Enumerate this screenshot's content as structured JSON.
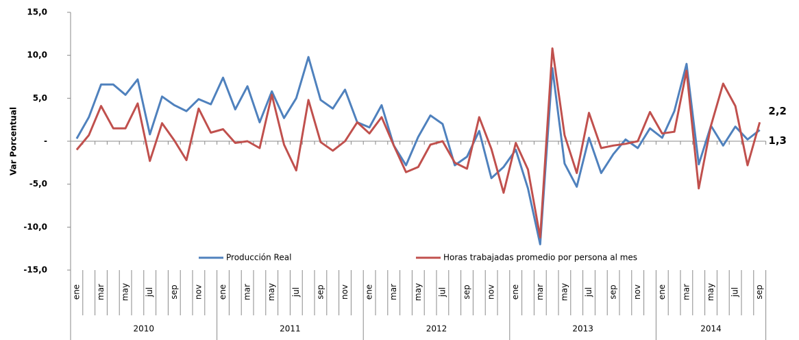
{
  "chart_data": {
    "type": "line",
    "y_label": "Var Porcentual",
    "categories": [
      "ene",
      null,
      "mar",
      null,
      "may",
      null,
      "jul",
      null,
      "sep",
      null,
      "nov",
      null,
      "ene",
      null,
      "mar",
      null,
      "may",
      null,
      "jul",
      null,
      "sep",
      null,
      "nov",
      null,
      "ene",
      null,
      "mar",
      null,
      "may",
      null,
      "jul",
      null,
      "sep",
      null,
      "nov",
      null,
      "ene",
      null,
      "mar",
      null,
      "may",
      null,
      "jul",
      null,
      "sep",
      null,
      "nov",
      null,
      "ene",
      null,
      "mar",
      null,
      "may",
      null,
      "jul",
      null,
      "sep"
    ],
    "years": [
      "2010",
      "2011",
      "2012",
      "2013",
      "2014"
    ],
    "series": [
      {
        "name": "Producción Real",
        "color": "#4f81bd",
        "values": [
          0.3,
          2.8,
          6.6,
          6.6,
          5.4,
          7.2,
          0.8,
          5.2,
          4.2,
          3.5,
          4.9,
          4.3,
          7.4,
          3.7,
          6.4,
          2.2,
          5.8,
          2.7,
          5.0,
          9.8,
          4.8,
          3.8,
          6.0,
          2.2,
          1.6,
          4.2,
          -0.5,
          -2.8,
          0.5,
          3.0,
          2.0,
          -2.8,
          -1.8,
          1.2,
          -4.3,
          -3.0,
          -1.0,
          -5.5,
          -12.0,
          8.5,
          -2.6,
          -5.3,
          0.4,
          -3.7,
          -1.5,
          0.2,
          -0.8,
          1.5,
          0.4,
          3.5,
          9.0,
          -2.7,
          1.8,
          -0.5,
          1.7,
          0.2,
          1.3
        ],
        "value_labels": [
          null,
          null,
          null,
          null,
          null,
          null,
          null,
          null,
          null,
          null,
          null,
          null,
          null,
          null,
          null,
          null,
          null,
          null,
          null,
          null,
          null,
          null,
          null,
          null,
          null,
          null,
          null,
          null,
          null,
          null,
          null,
          null,
          null,
          null,
          null,
          null,
          null,
          null,
          null,
          null,
          null,
          null,
          null,
          null,
          null,
          null,
          null,
          null,
          null,
          null,
          null,
          null,
          null,
          null,
          null,
          null,
          "1,3"
        ],
        "label_color": "#000000"
      },
      {
        "name": "Horas trabajadas promedio por persona al mes",
        "color": "#c0504d",
        "values": [
          -1.0,
          0.7,
          4.1,
          1.5,
          1.5,
          4.4,
          -2.3,
          2.1,
          0.1,
          -2.2,
          3.8,
          1.0,
          1.4,
          -0.2,
          0.0,
          -0.8,
          5.4,
          -0.4,
          -3.4,
          4.8,
          -0.1,
          -1.1,
          0.0,
          2.2,
          0.9,
          2.8,
          -0.5,
          -3.6,
          -3.0,
          -0.4,
          0.0,
          -2.5,
          -3.2,
          2.8,
          -0.9,
          -6.0,
          -0.2,
          -3.3,
          -11.2,
          10.8,
          0.7,
          -3.7,
          3.3,
          -0.8,
          -0.5,
          -0.3,
          0.0,
          3.4,
          0.9,
          1.1,
          8.2,
          -5.5,
          1.8,
          6.7,
          4.1,
          -2.8,
          2.2
        ],
        "value_labels": [
          null,
          null,
          null,
          null,
          null,
          null,
          null,
          null,
          null,
          null,
          null,
          null,
          null,
          null,
          null,
          null,
          null,
          null,
          null,
          null,
          null,
          null,
          null,
          null,
          null,
          null,
          null,
          null,
          null,
          null,
          null,
          null,
          null,
          null,
          null,
          null,
          null,
          null,
          null,
          null,
          null,
          null,
          null,
          null,
          null,
          null,
          null,
          null,
          null,
          null,
          null,
          null,
          null,
          null,
          null,
          null,
          "2,2"
        ],
        "label_color": "#ff0000"
      }
    ],
    "ylim": [
      -15,
      15
    ],
    "yticks": [
      {
        "value": -15,
        "label": "-15,0"
      },
      {
        "value": -10,
        "label": "-10,0"
      },
      {
        "value": -5,
        "label": "-5,0"
      },
      {
        "value": 0,
        "label": "-"
      },
      {
        "value": 5,
        "label": "5,0"
      },
      {
        "value": 10,
        "label": "10,0"
      },
      {
        "value": 15,
        "label": "15,0"
      }
    ]
  }
}
